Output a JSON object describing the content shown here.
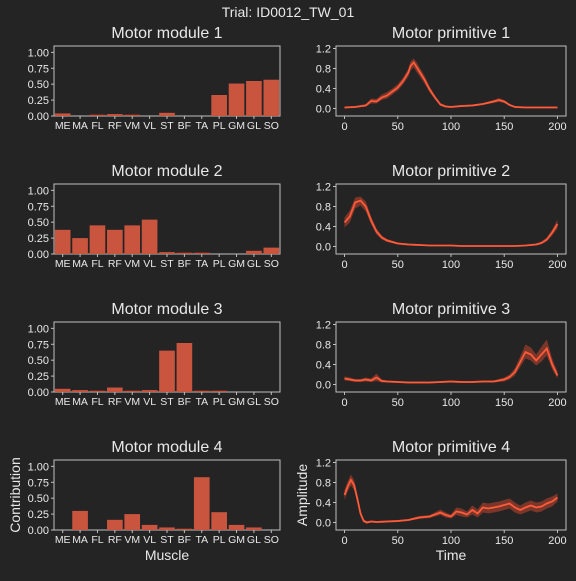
{
  "figure": {
    "title": "Trial: ID0012_TW_01",
    "background": "#242424",
    "bar_color": "#c9553f",
    "line_color": "#ff5a3a",
    "band_color": "#8a3a2a",
    "axis_color": "#bfbfbf",
    "text_color": "#e8e8e8"
  },
  "chart_data": [
    {
      "type": "bar",
      "title": "Motor module 1",
      "categories": [
        "ME",
        "MA",
        "FL",
        "RF",
        "VM",
        "VL",
        "ST",
        "BF",
        "TA",
        "PL",
        "GM",
        "GL",
        "SO"
      ],
      "values": [
        0.04,
        0.0,
        0.02,
        0.03,
        0.02,
        0.0,
        0.05,
        0.0,
        0.0,
        0.33,
        0.51,
        0.55,
        0.57
      ],
      "ylim": [
        0,
        1.1
      ],
      "yticks": [
        "0.00",
        "0.25",
        "0.50",
        "0.75",
        "1.00"
      ],
      "xlabel": "",
      "ylabel": ""
    },
    {
      "type": "line",
      "title": "Motor primitive 1",
      "xlim": [
        -8,
        208
      ],
      "ylim": [
        -0.15,
        1.25
      ],
      "xticks": [
        "0",
        "50",
        "100",
        "150",
        "200"
      ],
      "yticks": [
        "0.0",
        "0.4",
        "0.8",
        "1.2"
      ],
      "x": [
        0,
        10,
        20,
        25,
        30,
        35,
        40,
        45,
        50,
        55,
        60,
        62,
        65,
        68,
        70,
        75,
        80,
        85,
        90,
        95,
        100,
        110,
        120,
        130,
        140,
        145,
        150,
        155,
        160,
        170,
        180,
        190,
        200
      ],
      "mean": [
        0.02,
        0.03,
        0.06,
        0.15,
        0.14,
        0.22,
        0.26,
        0.34,
        0.42,
        0.55,
        0.72,
        0.85,
        0.92,
        0.82,
        0.75,
        0.58,
        0.38,
        0.22,
        0.08,
        0.04,
        0.03,
        0.05,
        0.06,
        0.09,
        0.14,
        0.17,
        0.14,
        0.07,
        0.03,
        0.02,
        0.02,
        0.02,
        0.02
      ],
      "lower": [
        0.0,
        0.02,
        0.04,
        0.1,
        0.1,
        0.17,
        0.2,
        0.28,
        0.36,
        0.48,
        0.64,
        0.76,
        0.82,
        0.72,
        0.66,
        0.5,
        0.32,
        0.18,
        0.05,
        0.02,
        0.02,
        0.03,
        0.04,
        0.07,
        0.11,
        0.13,
        0.11,
        0.05,
        0.02,
        0.01,
        0.01,
        0.01,
        0.01
      ],
      "upper": [
        0.04,
        0.05,
        0.09,
        0.2,
        0.19,
        0.28,
        0.33,
        0.4,
        0.49,
        0.62,
        0.8,
        0.94,
        1.0,
        0.92,
        0.84,
        0.66,
        0.44,
        0.26,
        0.11,
        0.06,
        0.05,
        0.07,
        0.08,
        0.11,
        0.17,
        0.21,
        0.17,
        0.09,
        0.05,
        0.04,
        0.04,
        0.04,
        0.04
      ],
      "xlabel": "",
      "ylabel": ""
    },
    {
      "type": "bar",
      "title": "Motor module 2",
      "categories": [
        "ME",
        "MA",
        "FL",
        "RF",
        "VM",
        "VL",
        "ST",
        "BF",
        "TA",
        "PL",
        "GM",
        "GL",
        "SO"
      ],
      "values": [
        0.38,
        0.25,
        0.45,
        0.38,
        0.45,
        0.54,
        0.03,
        0.02,
        0.02,
        0.0,
        0.0,
        0.05,
        0.1
      ],
      "ylim": [
        0,
        1.1
      ],
      "yticks": [
        "0.00",
        "0.25",
        "0.50",
        "0.75",
        "1.00"
      ],
      "xlabel": "",
      "ylabel": ""
    },
    {
      "type": "line",
      "title": "Motor primitive 2",
      "xlim": [
        -8,
        208
      ],
      "ylim": [
        -0.15,
        1.25
      ],
      "xticks": [
        "0",
        "50",
        "100",
        "150",
        "200"
      ],
      "yticks": [
        "0.0",
        "0.4",
        "0.8",
        "1.2"
      ],
      "x": [
        0,
        5,
        10,
        15,
        20,
        25,
        30,
        35,
        40,
        50,
        60,
        70,
        80,
        90,
        100,
        110,
        120,
        130,
        140,
        150,
        160,
        170,
        180,
        185,
        190,
        195,
        200
      ],
      "mean": [
        0.48,
        0.6,
        0.88,
        0.92,
        0.8,
        0.52,
        0.3,
        0.18,
        0.12,
        0.06,
        0.04,
        0.03,
        0.02,
        0.02,
        0.02,
        0.01,
        0.01,
        0.01,
        0.01,
        0.01,
        0.01,
        0.02,
        0.04,
        0.07,
        0.14,
        0.28,
        0.45
      ],
      "lower": [
        0.38,
        0.48,
        0.76,
        0.82,
        0.7,
        0.44,
        0.24,
        0.14,
        0.09,
        0.04,
        0.02,
        0.01,
        0.01,
        0.01,
        0.01,
        0.0,
        0.0,
        0.0,
        0.0,
        0.0,
        0.0,
        0.01,
        0.02,
        0.05,
        0.1,
        0.22,
        0.36
      ],
      "upper": [
        0.58,
        0.72,
        0.98,
        1.0,
        0.9,
        0.6,
        0.36,
        0.22,
        0.15,
        0.08,
        0.06,
        0.05,
        0.03,
        0.03,
        0.03,
        0.02,
        0.02,
        0.02,
        0.02,
        0.02,
        0.02,
        0.03,
        0.06,
        0.1,
        0.18,
        0.34,
        0.54
      ],
      "xlabel": "",
      "ylabel": ""
    },
    {
      "type": "bar",
      "title": "Motor module 3",
      "categories": [
        "ME",
        "MA",
        "FL",
        "RF",
        "VM",
        "VL",
        "ST",
        "BF",
        "TA",
        "PL",
        "GM",
        "GL",
        "SO"
      ],
      "values": [
        0.05,
        0.03,
        0.02,
        0.07,
        0.02,
        0.03,
        0.65,
        0.77,
        0.02,
        0.02,
        0.0,
        0.0,
        0.0
      ],
      "ylim": [
        0,
        1.1
      ],
      "yticks": [
        "0.00",
        "0.25",
        "0.50",
        "0.75",
        "1.00"
      ],
      "xlabel": "",
      "ylabel": ""
    },
    {
      "type": "line",
      "title": "Motor primitive 3",
      "xlim": [
        -8,
        208
      ],
      "ylim": [
        -0.15,
        1.25
      ],
      "xticks": [
        "0",
        "50",
        "100",
        "150",
        "200"
      ],
      "yticks": [
        "0.0",
        "0.4",
        "0.8",
        "1.2"
      ],
      "x": [
        0,
        5,
        10,
        15,
        20,
        25,
        30,
        35,
        40,
        50,
        60,
        70,
        80,
        90,
        100,
        110,
        120,
        130,
        140,
        150,
        155,
        160,
        165,
        170,
        175,
        180,
        185,
        190,
        195,
        200
      ],
      "mean": [
        0.12,
        0.1,
        0.08,
        0.08,
        0.1,
        0.08,
        0.14,
        0.07,
        0.06,
        0.05,
        0.04,
        0.04,
        0.04,
        0.05,
        0.06,
        0.05,
        0.05,
        0.06,
        0.06,
        0.1,
        0.15,
        0.25,
        0.45,
        0.65,
        0.6,
        0.48,
        0.6,
        0.72,
        0.4,
        0.18
      ],
      "lower": [
        0.08,
        0.07,
        0.05,
        0.05,
        0.06,
        0.05,
        0.07,
        0.04,
        0.04,
        0.03,
        0.02,
        0.02,
        0.02,
        0.03,
        0.04,
        0.03,
        0.03,
        0.04,
        0.04,
        0.06,
        0.1,
        0.18,
        0.35,
        0.52,
        0.48,
        0.38,
        0.46,
        0.58,
        0.3,
        0.12
      ],
      "upper": [
        0.16,
        0.14,
        0.11,
        0.11,
        0.14,
        0.12,
        0.22,
        0.1,
        0.08,
        0.07,
        0.06,
        0.06,
        0.06,
        0.07,
        0.08,
        0.07,
        0.07,
        0.08,
        0.08,
        0.14,
        0.2,
        0.33,
        0.56,
        0.8,
        0.74,
        0.6,
        0.76,
        0.9,
        0.52,
        0.26
      ],
      "xlabel": "",
      "ylabel": ""
    },
    {
      "type": "bar",
      "title": "Motor module 4",
      "categories": [
        "ME",
        "MA",
        "FL",
        "RF",
        "VM",
        "VL",
        "ST",
        "BF",
        "TA",
        "PL",
        "GM",
        "GL",
        "SO"
      ],
      "values": [
        0.0,
        0.3,
        0.0,
        0.16,
        0.25,
        0.08,
        0.04,
        0.02,
        0.83,
        0.28,
        0.08,
        0.04,
        0.0
      ],
      "ylim": [
        0,
        1.1
      ],
      "yticks": [
        "0.00",
        "0.25",
        "0.50",
        "0.75",
        "1.00"
      ],
      "xlabel": "Muscle",
      "ylabel": "Contribution"
    },
    {
      "type": "line",
      "title": "Motor primitive 4",
      "xlim": [
        -8,
        208
      ],
      "ylim": [
        -0.15,
        1.25
      ],
      "xticks": [
        "0",
        "50",
        "100",
        "150",
        "200"
      ],
      "yticks": [
        "0.0",
        "0.4",
        "0.8",
        "1.2"
      ],
      "x": [
        0,
        3,
        6,
        9,
        12,
        15,
        18,
        21,
        25,
        30,
        40,
        50,
        60,
        70,
        80,
        90,
        95,
        100,
        105,
        110,
        115,
        120,
        125,
        130,
        135,
        140,
        145,
        150,
        155,
        160,
        165,
        170,
        175,
        180,
        185,
        190,
        195,
        200
      ],
      "mean": [
        0.55,
        0.72,
        0.85,
        0.75,
        0.48,
        0.18,
        0.03,
        0.0,
        0.02,
        0.01,
        0.02,
        0.03,
        0.05,
        0.1,
        0.12,
        0.2,
        0.15,
        0.12,
        0.22,
        0.2,
        0.16,
        0.25,
        0.18,
        0.3,
        0.28,
        0.3,
        0.32,
        0.35,
        0.38,
        0.3,
        0.25,
        0.3,
        0.34,
        0.3,
        0.32,
        0.38,
        0.42,
        0.5
      ],
      "lower": [
        0.45,
        0.62,
        0.74,
        0.65,
        0.4,
        0.12,
        0.0,
        -0.02,
        0.0,
        -0.01,
        0.0,
        0.01,
        0.03,
        0.07,
        0.09,
        0.15,
        0.1,
        0.08,
        0.15,
        0.12,
        0.1,
        0.16,
        0.1,
        0.2,
        0.18,
        0.2,
        0.22,
        0.25,
        0.28,
        0.2,
        0.16,
        0.2,
        0.24,
        0.2,
        0.22,
        0.28,
        0.32,
        0.42
      ],
      "upper": [
        0.65,
        0.82,
        0.96,
        0.85,
        0.56,
        0.24,
        0.06,
        0.03,
        0.04,
        0.03,
        0.04,
        0.05,
        0.07,
        0.13,
        0.15,
        0.26,
        0.2,
        0.16,
        0.3,
        0.28,
        0.22,
        0.34,
        0.26,
        0.4,
        0.38,
        0.4,
        0.42,
        0.45,
        0.48,
        0.4,
        0.34,
        0.4,
        0.44,
        0.4,
        0.42,
        0.48,
        0.52,
        0.58
      ],
      "xlabel": "Time",
      "ylabel": "Amplitude"
    }
  ]
}
